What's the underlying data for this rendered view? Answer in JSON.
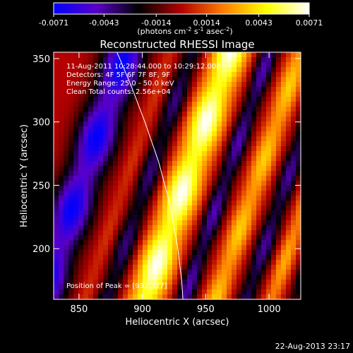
{
  "chart_data": {
    "type": "heatmap",
    "title": "Reconstructed RHESSI Image",
    "xlabel": "Heliocentric X (arcsec)",
    "ylabel": "Heliocentric Y (arcsec)",
    "xlim": [
      830,
      1025
    ],
    "ylim": [
      160,
      355
    ],
    "x_ticks": [
      850,
      900,
      950,
      1000
    ],
    "y_ticks": [
      200,
      250,
      300,
      350
    ],
    "x_tick_labels": [
      "850",
      "900",
      "950",
      "1000"
    ],
    "y_tick_labels": [
      "200",
      "250",
      "300",
      "350"
    ],
    "colorbar": {
      "range": [
        -0.0071,
        0.0071
      ],
      "ticks": [
        -0.0071,
        -0.0043,
        -0.0014,
        0.0014,
        0.0043,
        0.0071
      ],
      "tick_labels": [
        "-0.0071",
        "-0.0043",
        "-0.0014",
        "0.0014",
        "0.0043",
        "0.0071"
      ],
      "unit_main": "(photons cm",
      "unit_exp1": "-2",
      "unit_s": " s",
      "unit_exp2": "-1",
      "unit_asec": " asec",
      "unit_exp3": "-2",
      "unit_end": ")",
      "colormap": [
        "#0000ff",
        "#5a00c8",
        "#000000",
        "#b40000",
        "#ff8000",
        "#ffff00",
        "#ffffff"
      ]
    },
    "annotations": {
      "time": "11-Aug-2011 10:28:44.000 to 10:29:12.000",
      "detectors": "Detectors: 4F 5F 6F 7F 8F, 9F",
      "energy": "Energy Range: 25.0 - 50.0 keV",
      "clean": "Clean    Total counts: 2.56e+04",
      "peak": "Position of Peak = [932,327]"
    },
    "peak": [
      932,
      327
    ],
    "limb_curve": {
      "x": [
        880,
        891,
        902,
        913,
        922,
        928,
        931,
        932
      ],
      "y": [
        355,
        329,
        300,
        268,
        234,
        200,
        175,
        160
      ]
    },
    "ridges": [
      {
        "x0": 820,
        "y0": 160,
        "slope": 2.9,
        "width": 17,
        "amp": -1.0
      },
      {
        "x0": 855,
        "y0": 160,
        "slope": 2.9,
        "width": 7,
        "amp": 0.15
      },
      {
        "x0": 872,
        "y0": 160,
        "slope": 2.9,
        "width": 9,
        "amp": -0.55
      },
      {
        "x0": 902,
        "y0": 160,
        "slope": 2.9,
        "width": 14,
        "amp": 1.0
      },
      {
        "x0": 933,
        "y0": 160,
        "slope": 2.9,
        "width": 8,
        "amp": -0.65
      },
      {
        "x0": 958,
        "y0": 160,
        "slope": 2.9,
        "width": 9,
        "amp": 0.55
      },
      {
        "x0": 982,
        "y0": 160,
        "slope": 2.9,
        "width": 8,
        "amp": -0.6
      },
      {
        "x0": 1002,
        "y0": 160,
        "slope": 2.9,
        "width": 7,
        "amp": 0.45
      },
      {
        "x0": 1020,
        "y0": 160,
        "slope": 2.9,
        "width": 6,
        "amp": -0.4
      }
    ],
    "footer_date": "22-Aug-2013 23:17"
  }
}
